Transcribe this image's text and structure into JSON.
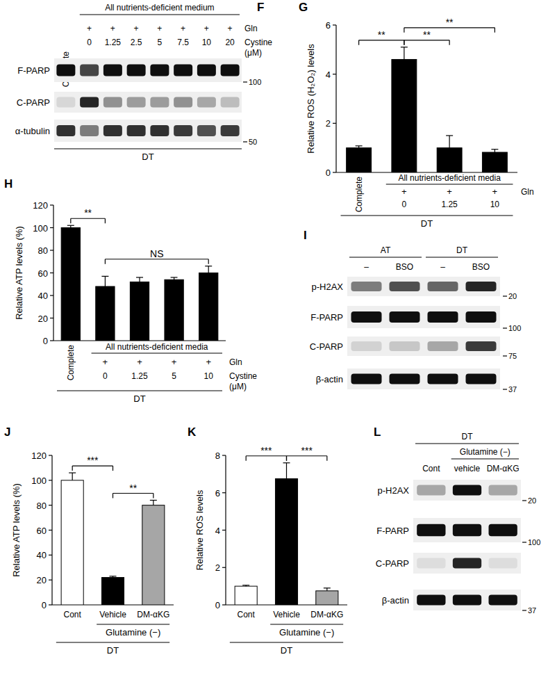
{
  "chart_data": [
    {
      "type": "blot",
      "title": "F",
      "groups": [
        [
          {
            "label": "All nutrients-deficient medium",
            "span": [
              1,
              7
            ]
          }
        ]
      ],
      "lane_top": [
        "Complete",
        null,
        null,
        null,
        null,
        null,
        null,
        null
      ],
      "lane_rows": [
        {
          "label": "Gln",
          "cells": [
            null,
            "+",
            "+",
            "+",
            "+",
            "+",
            "+",
            "+"
          ]
        },
        {
          "label": "Cystine (μM)",
          "cells": [
            null,
            "0",
            "1.25",
            "2.5",
            "5",
            "7.5",
            "10",
            "20"
          ]
        }
      ],
      "bands": [
        {
          "label": "F-PARP",
          "values": [
            1,
            0.75,
            1,
            1,
            1,
            1,
            1,
            1
          ]
        },
        {
          "label": "C-PARP",
          "values": [
            0.08,
            0.9,
            0.4,
            0.35,
            0.35,
            0.4,
            0.3,
            0.2
          ]
        },
        {
          "label": "α-tubulin",
          "values": [
            0.85,
            0.5,
            0.85,
            0.85,
            0.85,
            0.8,
            0.7,
            0.8
          ]
        }
      ],
      "markers": [
        {
          "value": 100,
          "row": 0
        },
        {
          "value": 50,
          "row": 2
        }
      ],
      "footer": "DT"
    },
    {
      "type": "bar",
      "title": "G",
      "y_label": "Relative ROS (H₂O₂) levels",
      "categories": [
        "Complete",
        "0",
        "1.25",
        "10"
      ],
      "values": [
        1,
        4.6,
        1,
        0.82
      ],
      "errors": [
        0.08,
        0.5,
        0.5,
        0.12
      ],
      "color": "#000000",
      "ylim": [
        0,
        6
      ],
      "yticks": [
        0,
        2,
        4,
        6
      ],
      "annotations": [
        {
          "text": "**",
          "from": 0,
          "to": 1
        },
        {
          "text": "**",
          "from": 1,
          "to": 2
        },
        {
          "text": "**",
          "from": 1,
          "to": 3
        }
      ],
      "group_label": "All nutrients-deficient media",
      "group_span": [
        1,
        3
      ],
      "rows": [
        {
          "label": "Gln",
          "cells": [
            null,
            "+",
            "+",
            "+"
          ]
        }
      ],
      "footer": "DT"
    },
    {
      "type": "bar",
      "title": "H",
      "y_label": "Relative ATP levels (%)",
      "categories": [
        "Complete",
        "0",
        "1.25",
        "5",
        "10"
      ],
      "x_label": "Cystine (μM)",
      "values": [
        100,
        48,
        52,
        54,
        60
      ],
      "errors": [
        2,
        9,
        4,
        2,
        6
      ],
      "color": "#000000",
      "ylim": [
        0,
        120
      ],
      "yticks": [
        0,
        20,
        40,
        60,
        80,
        100,
        120
      ],
      "annotations": [
        {
          "text": "**",
          "from": 0,
          "to": 1
        },
        {
          "text": "NS",
          "from": 1,
          "to": 4
        }
      ],
      "group_label": "All nutrients-deficient media",
      "group_span": [
        1,
        4
      ],
      "rows": [
        {
          "label": "Gln",
          "cells": [
            null,
            "+",
            "+",
            "+",
            "+"
          ]
        }
      ],
      "footer": "DT"
    },
    {
      "type": "blot",
      "title": "I",
      "groups": [
        [
          {
            "label": "AT",
            "span": [
              0,
              1
            ]
          },
          {
            "label": "DT",
            "span": [
              2,
              3
            ]
          }
        ]
      ],
      "lane_rows": [
        {
          "cells": [
            "–",
            "BSO",
            "–",
            "BSO"
          ]
        }
      ],
      "bands": [
        {
          "label": "p-H2AX",
          "values": [
            0.5,
            0.7,
            0.6,
            0.9
          ]
        },
        {
          "label": "F-PARP",
          "values": [
            1,
            1,
            1,
            1
          ]
        },
        {
          "label": "C-PARP",
          "values": [
            0.1,
            0.15,
            0.3,
            0.8
          ]
        },
        {
          "label": "β-actin",
          "values": [
            1,
            1,
            1,
            1
          ]
        }
      ],
      "markers": [
        {
          "value": 20,
          "row": 0
        },
        {
          "value": 100,
          "row": 1
        },
        {
          "value": 75,
          "row": 2
        },
        {
          "value": 37,
          "row": 3
        }
      ]
    },
    {
      "type": "bar",
      "title": "J",
      "y_label": "Relative ATP levels (%)",
      "categories": [
        "Cont",
        "Vehicle",
        "DM-αKG"
      ],
      "values": [
        100,
        22,
        80
      ],
      "errors": [
        6,
        1,
        4
      ],
      "colors": [
        "#ffffff",
        "#000000",
        "#a6a6a6"
      ],
      "ylim": [
        0,
        120
      ],
      "yticks": [
        0,
        20,
        40,
        60,
        80,
        100,
        120
      ],
      "annotations": [
        {
          "text": "***",
          "from": 0,
          "to": 1
        },
        {
          "text": "**",
          "from": 1,
          "to": 2
        }
      ],
      "group_label": "Glutamine (−)",
      "group_span": [
        1,
        2
      ],
      "footer": "DT"
    },
    {
      "type": "bar",
      "title": "K",
      "y_label": "Relative ROS levels",
      "categories": [
        "Cont",
        "Vehicle",
        "DM-αKG"
      ],
      "values": [
        1,
        6.75,
        0.75
      ],
      "errors": [
        0.05,
        0.85,
        0.15
      ],
      "colors": [
        "#ffffff",
        "#000000",
        "#a6a6a6"
      ],
      "ylim": [
        0,
        8
      ],
      "yticks": [
        0,
        2,
        4,
        6,
        8
      ],
      "annotations": [
        {
          "text": "***",
          "from": 0,
          "to": 1
        },
        {
          "text": "***",
          "from": 1,
          "to": 2
        }
      ],
      "group_label": "Glutamine (−)",
      "group_span": [
        1,
        2
      ],
      "footer": "DT"
    },
    {
      "type": "blot",
      "title": "L",
      "groups": [
        [
          {
            "label": "DT",
            "span": [
              0,
              2
            ]
          }
        ],
        [
          {
            "label": "Glutamine (−)",
            "span": [
              1,
              2
            ]
          }
        ]
      ],
      "lane_rows": [
        {
          "cells": [
            "Cont",
            "vehicle",
            "DM-αKG"
          ]
        }
      ],
      "bands": [
        {
          "label": "p-H2AX",
          "values": [
            0.3,
            1,
            0.3
          ]
        },
        {
          "label": "F-PARP",
          "values": [
            1,
            1,
            1
          ]
        },
        {
          "label": "C-PARP",
          "values": [
            0.05,
            0.9,
            0.05
          ]
        },
        {
          "label": "β-actin",
          "values": [
            1,
            1,
            1
          ]
        }
      ],
      "markers": [
        {
          "value": 20,
          "row": 0
        },
        {
          "value": 100,
          "row": 1
        },
        {
          "value": 37,
          "row": 3
        }
      ]
    }
  ]
}
